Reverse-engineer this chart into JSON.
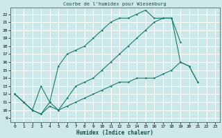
{
  "title": "Courbe de l'humidex pour Wiesenburg",
  "xlabel": "Humidex (Indice chaleur)",
  "bg_color": "#cce8e8",
  "grid_color": "#ffffff",
  "line_color": "#1a7a6e",
  "xlim": [
    -0.5,
    23.5
  ],
  "ylim": [
    8.5,
    22.8
  ],
  "xticks": [
    0,
    1,
    2,
    3,
    4,
    5,
    6,
    7,
    8,
    9,
    10,
    11,
    12,
    13,
    14,
    15,
    16,
    17,
    18,
    19,
    20,
    21,
    22,
    23
  ],
  "yticks": [
    9,
    10,
    11,
    12,
    13,
    14,
    15,
    16,
    17,
    18,
    19,
    20,
    21,
    22
  ],
  "line1_x": [
    0,
    1,
    2,
    3,
    4,
    5,
    6,
    7,
    8,
    9,
    10,
    11,
    12,
    13,
    14,
    15,
    16,
    17,
    18,
    19
  ],
  "line1_y": [
    12,
    11,
    10,
    9.5,
    11,
    15.5,
    17,
    17.5,
    18,
    19,
    20,
    21,
    21.5,
    21.5,
    22,
    22.5,
    21.5,
    21.5,
    21.5,
    18.5
  ],
  "line2_x": [
    0,
    1,
    2,
    3,
    4,
    5,
    6,
    7,
    8,
    9,
    10,
    11,
    12,
    13,
    14,
    15,
    16,
    17,
    18,
    19,
    20,
    21
  ],
  "line2_y": [
    12,
    11,
    10,
    13,
    11,
    10,
    11.5,
    13,
    13.5,
    14,
    15,
    16,
    17,
    18,
    19,
    20,
    21,
    21.5,
    21.5,
    16,
    15.5,
    13.5
  ],
  "line3_x": [
    0,
    1,
    2,
    3,
    4,
    5,
    6,
    7,
    8,
    9,
    10,
    11,
    12,
    13,
    14,
    15,
    16,
    17,
    18,
    19,
    20,
    21
  ],
  "line3_y": [
    12,
    11,
    10,
    9.5,
    10.5,
    10,
    10.5,
    11,
    11.5,
    12,
    12.5,
    13,
    13.5,
    13.5,
    14,
    14,
    14,
    14.5,
    15,
    16,
    15.5,
    13.5
  ]
}
